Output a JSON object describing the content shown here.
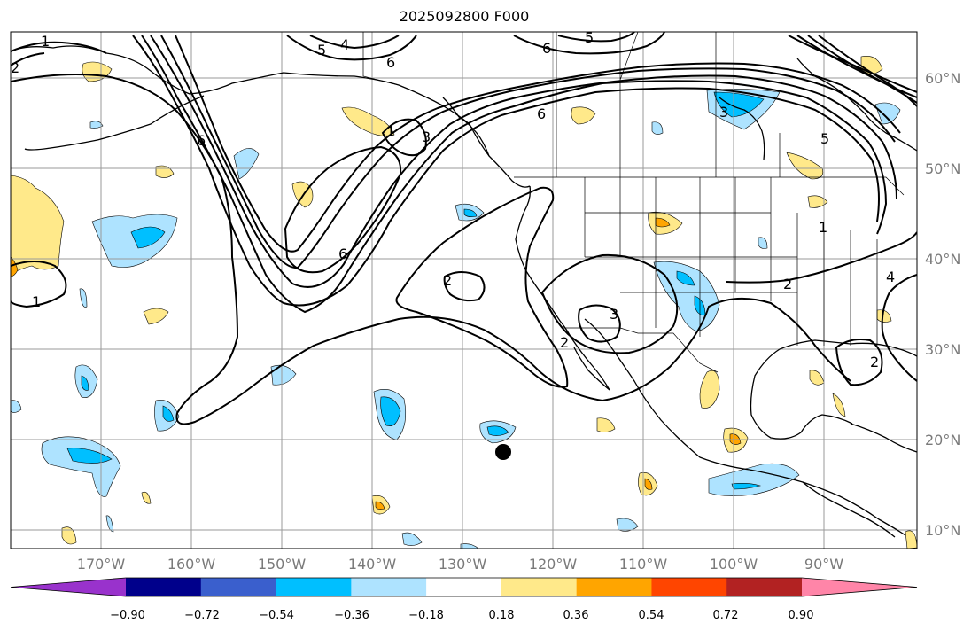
{
  "title": "2025092800 F000",
  "latitude_labels": [
    "60°N",
    "50°N",
    "40°N",
    "30°N",
    "20°N",
    "10°N"
  ],
  "longitude_labels": [
    "170°W",
    "160°W",
    "150°W",
    "140°W",
    "130°W",
    "120°W",
    "110°W",
    "100°W",
    "90°W"
  ],
  "colorbar": {
    "tick_labels": [
      "−0.90",
      "−0.72",
      "−0.54",
      "−0.36",
      "−0.18",
      "0.18",
      "0.36",
      "0.54",
      "0.72",
      "0.90"
    ],
    "colors": [
      "#9932cc",
      "#00008b",
      "#3a5fcd",
      "#00bfff",
      "#aee3ff",
      "#ffffff",
      "#ffe98a",
      "#ffa500",
      "#ff4500",
      "#b22222",
      "#ff85a8"
    ]
  },
  "contour_labels": [
    "5",
    "4",
    "6",
    "5",
    "6",
    "2",
    "1",
    "3",
    "1",
    "6",
    "6",
    "3",
    "5",
    "1",
    "6",
    "2",
    "3",
    "2",
    "1",
    "2",
    "4",
    "2"
  ],
  "colors": {
    "contour": "#000000",
    "grid": "#9a9a9a",
    "coast": "#000000",
    "label": "#7a7a7a"
  }
}
